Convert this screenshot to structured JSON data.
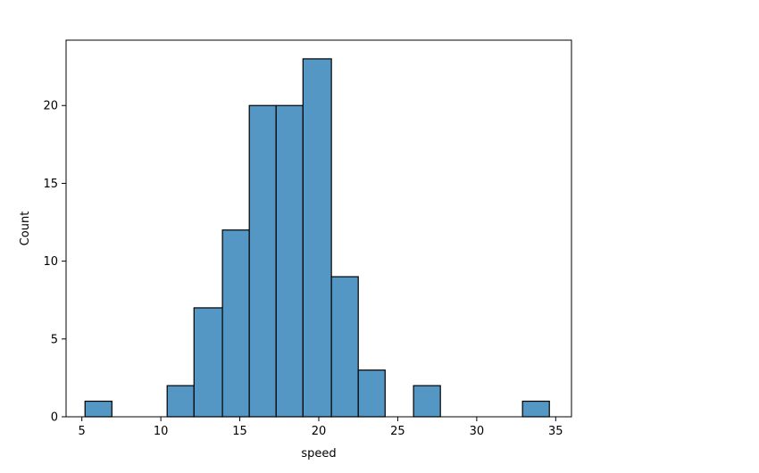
{
  "colors": {
    "bar_fill": "#5497c5",
    "bar_edge": "#000000",
    "axis": "#000000",
    "background": "#ffffff"
  },
  "chart_data": {
    "type": "bar",
    "title": "",
    "xlabel": "speed",
    "ylabel": "Count",
    "xlim": [
      4,
      36
    ],
    "ylim": [
      0,
      24.2
    ],
    "x_ticks": [
      5,
      10,
      15,
      20,
      25,
      30,
      35
    ],
    "y_ticks": [
      0,
      5,
      10,
      15,
      20
    ],
    "bins": [
      {
        "start": 5.2,
        "end": 6.9,
        "count": 1
      },
      {
        "start": 6.9,
        "end": 8.6,
        "count": 0
      },
      {
        "start": 8.6,
        "end": 10.4,
        "count": 0
      },
      {
        "start": 10.4,
        "end": 12.1,
        "count": 2
      },
      {
        "start": 12.1,
        "end": 13.9,
        "count": 7
      },
      {
        "start": 13.9,
        "end": 15.6,
        "count": 12
      },
      {
        "start": 15.6,
        "end": 17.3,
        "count": 20
      },
      {
        "start": 17.3,
        "end": 19.0,
        "count": 20
      },
      {
        "start": 19.0,
        "end": 20.8,
        "count": 23
      },
      {
        "start": 20.8,
        "end": 22.5,
        "count": 9
      },
      {
        "start": 22.5,
        "end": 24.2,
        "count": 3
      },
      {
        "start": 24.2,
        "end": 26.0,
        "count": 0
      },
      {
        "start": 26.0,
        "end": 27.7,
        "count": 2
      },
      {
        "start": 27.7,
        "end": 29.4,
        "count": 0
      },
      {
        "start": 29.4,
        "end": 31.1,
        "count": 0
      },
      {
        "start": 31.1,
        "end": 32.9,
        "count": 0
      },
      {
        "start": 32.9,
        "end": 34.6,
        "count": 1
      }
    ]
  }
}
